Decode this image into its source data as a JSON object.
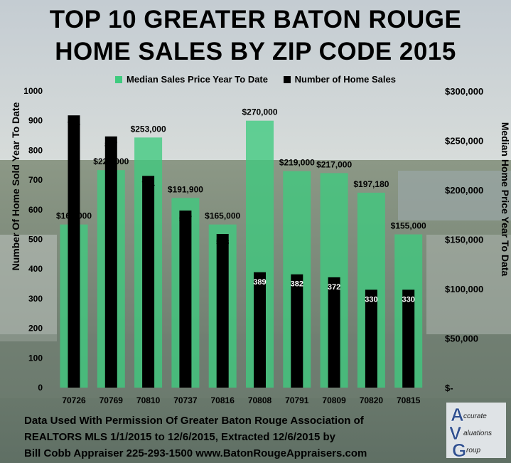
{
  "title_line1": "TOP 10 GREATER BATON ROUGE",
  "title_line2": "HOME SALES BY ZIP CODE 2015",
  "footer": {
    "line1": "Data Used With Permission Of Greater Baton Rouge Association of",
    "line2": "REALTORS MLS 1/1/2015 to 12/6/2015, Extracted 12/6/2015 by",
    "line3": "Bill Cobb Appraiser 225-293-1500 www.BatonRougeAppraisers.com"
  },
  "logo": {
    "letters": [
      "A",
      "V",
      "G"
    ],
    "words": [
      "ccurate",
      "aluations",
      "roup"
    ]
  },
  "colors": {
    "price_bar": "#3fcb7f",
    "sales_bar": "#000000"
  },
  "chart_data": {
    "type": "bar",
    "categories": [
      "70726",
      "70769",
      "70810",
      "70737",
      "70816",
      "70808",
      "70791",
      "70809",
      "70820",
      "70815"
    ],
    "series": [
      {
        "name": "Median Sales Price Year To Date",
        "axis": "right",
        "values": [
          165000,
          220000,
          253000,
          191900,
          165000,
          270000,
          219000,
          217000,
          197180,
          155000
        ],
        "labels": [
          "$165,000",
          "$220,000",
          "$253,000",
          "$191,900",
          "$165,000",
          "$270,000",
          "$219,000",
          "$217,000",
          "$197,180",
          "$155,000"
        ]
      },
      {
        "name": "Number of Home Sales",
        "axis": "left",
        "values": [
          918,
          847,
          714,
          597,
          518,
          389,
          382,
          372,
          330,
          330
        ],
        "labels": [
          "918",
          "847",
          "714",
          "597",
          "518",
          "389",
          "382",
          "372",
          "330",
          "330"
        ]
      }
    ],
    "ylabel_left": "Number Of Home Sold Year To Date",
    "ylabel_right": "Median Home Price Year To Data",
    "ylim_left": [
      0,
      1000
    ],
    "ylim_right": [
      0,
      300000
    ],
    "yticks_left": [
      "0",
      "100",
      "200",
      "300",
      "400",
      "500",
      "600",
      "700",
      "800",
      "900",
      "1000"
    ],
    "yticks_right": [
      "$-",
      "$50,000",
      "$100,000",
      "$150,000",
      "$200,000",
      "$250,000",
      "$300,000"
    ],
    "legend_position": "top",
    "grid": false
  }
}
